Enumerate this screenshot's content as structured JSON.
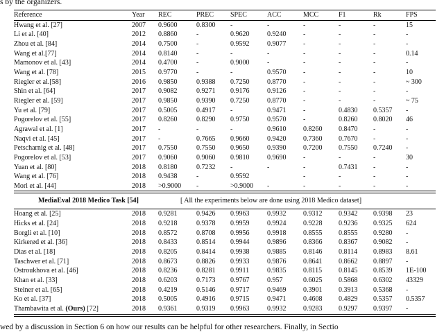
{
  "page": {
    "caption_top": "s by the organizers.",
    "caption_bottom": "wed by a discussion in Section 6 on how our results can be helpful for other researchers. Finally, in Sectio"
  },
  "table": {
    "columns": [
      "Reference",
      "Year",
      "REC",
      "PREC",
      "SPEC",
      "ACC",
      "MCC",
      "F1",
      "Rk",
      "FPS"
    ],
    "section1_rows": [
      {
        "cells": [
          "Hwang et al. [27]",
          "2007",
          "0.9600",
          "0.8300",
          "-",
          "-",
          "-",
          "-",
          "-",
          "15"
        ],
        "bold_cells": []
      },
      {
        "cells": [
          "Li et al. [40]",
          "2012",
          "0.8860",
          "-",
          "0.9620",
          "0.9240",
          "-",
          "-",
          "-",
          "-"
        ],
        "bold_cells": []
      },
      {
        "cells": [
          "Zhou et al. [84]",
          "2014",
          "0.7500",
          "-",
          "0.9592",
          "0.9077",
          "-",
          "-",
          "-",
          "-"
        ],
        "bold_cells": []
      },
      {
        "cells": [
          "Wang et al.[77]",
          "2014",
          "0.8140",
          "-",
          "-",
          "-",
          "-",
          "-",
          "-",
          "0.14"
        ],
        "bold_cells": []
      },
      {
        "cells": [
          "Mamonov et al. [43]",
          "2014",
          "0.4700",
          "-",
          "0.9000",
          "-",
          "-",
          "-",
          "-",
          "-"
        ],
        "bold_cells": []
      },
      {
        "cells": [
          "Wang et al. [78]",
          "2015",
          "0.9770",
          "-",
          "-",
          "0.9570",
          "-",
          "-",
          "-",
          "10"
        ],
        "bold_cells": []
      },
      {
        "cells": [
          "Riegler et al.[58]",
          "2016",
          "0.9850",
          "0.9388",
          "0.7250",
          "0.8770",
          "-",
          "-",
          "-",
          "~ 300"
        ],
        "bold_cells": []
      },
      {
        "cells": [
          "Shin et al. [64]",
          "2017",
          "0.9082",
          "0.9271",
          "0.9176",
          "0.9126",
          "-",
          "-",
          "-",
          "-"
        ],
        "bold_cells": []
      },
      {
        "cells": [
          "Riegler et al. [59]",
          "2017",
          "0.9850",
          "0.9390",
          "0.7250",
          "0.8770",
          "-",
          "-",
          "-",
          "~ 75"
        ],
        "bold_cells": []
      },
      {
        "cells": [
          "Yu et al. [79]",
          "2017",
          "0.5005",
          "0.4917",
          "-",
          "0.9471",
          "-",
          "0.4830",
          "0.5357",
          "-"
        ],
        "bold_cells": []
      },
      {
        "cells": [
          "Pogorelov et al. [55]",
          "2017",
          "0.8260",
          "0.8290",
          "0.9750",
          "0.9570",
          "-",
          "0.8260",
          "0.8020",
          "46"
        ],
        "bold_cells": []
      },
      {
        "cells": [
          "Agrawal et al. [1]",
          "2017",
          "-",
          "-",
          "-",
          "0.9610",
          "0.8260",
          "0.8470",
          "-",
          "-"
        ],
        "bold_cells": []
      },
      {
        "cells": [
          "Naqvi et al. [45]",
          "2017",
          "-",
          "0.7665",
          "0.9660",
          "0.9420",
          "0.7360",
          "0.7670",
          "-",
          "-"
        ],
        "bold_cells": []
      },
      {
        "cells": [
          "Petscharnig et al. [48]",
          "2017",
          "0.7550",
          "0.7550",
          "0.9650",
          "0.9390",
          "0.7200",
          "0.7550",
          "0.7240",
          "-"
        ],
        "bold_cells": []
      },
      {
        "cells": [
          "Pogorelov et al. [53]",
          "2017",
          "0.9060",
          "0.9060",
          "0.9810",
          "0.9690",
          "-",
          "-",
          "-",
          "30"
        ],
        "bold_cells": []
      },
      {
        "cells": [
          "Yuan et al. [80]",
          "2018",
          "0.8180",
          "0.7232",
          "-",
          "-",
          "-",
          "0.7431",
          "-",
          "-"
        ],
        "bold_cells": []
      },
      {
        "cells": [
          "Wang et al. [76]",
          "2018",
          "0.9438",
          "-",
          "0.9592",
          "",
          "-",
          "-",
          "-",
          "-"
        ],
        "bold_cells": []
      },
      {
        "cells": [
          "Mori et al. [44]",
          "2018",
          ">0.9000",
          "-",
          ">0.9000",
          "-",
          "-",
          "-",
          "-",
          "-"
        ],
        "bold_cells": []
      }
    ],
    "section_header": {
      "title": "MediaEval 2018 Medico Task [54]",
      "note": "[ All the experiments below are done using 2018 Medico dataset]"
    },
    "section2_rows": [
      {
        "cells": [
          "Hoang et al. [25]",
          "2018",
          "0.9281",
          "0.9426",
          "0.9963",
          "0.9932",
          "0.9312",
          "0.9342",
          "0.9398",
          "23"
        ],
        "bold_cells": [
          3,
          4,
          5,
          6,
          7,
          8
        ]
      },
      {
        "cells": [
          "Hicks et al. [24]",
          "2018",
          "0.9218",
          "0.9378",
          "0.9959",
          "0.9924",
          "0.9228",
          "0.9236",
          "0.9325",
          "624"
        ],
        "bold_cells": []
      },
      {
        "cells": [
          "Borgli et al. [10]",
          "2018",
          "0.8572",
          "0.8708",
          "0.9956",
          "0.9918",
          "0.8555",
          "0.8555",
          "0.9280",
          "-"
        ],
        "bold_cells": []
      },
      {
        "cells": [
          "Kirkerød et al. [36]",
          "2018",
          "0.8433",
          "0.8514",
          "0.9944",
          "0.9896",
          "0.8366",
          "0.8367",
          "0.9082",
          "-"
        ],
        "bold_cells": []
      },
      {
        "cells": [
          "Dias et al. [18]",
          "2018",
          "0.8205",
          "0.8414",
          "0.9938",
          "0.9885",
          "0.8146",
          "0.8114",
          "0.8983",
          "8.61"
        ],
        "bold_cells": []
      },
      {
        "cells": [
          "Taschwer et al. [71]",
          "2018",
          "0.8673",
          "0.8826",
          "0.9933",
          "0.9876",
          "0.8641",
          "0.8662",
          "0.8897",
          "-"
        ],
        "bold_cells": []
      },
      {
        "cells": [
          "Ostroukhova et al. [46]",
          "2018",
          "0.8236",
          "0.8281",
          "0.9911",
          "0.9835",
          "0.8115",
          "0.8145",
          "0.8539",
          "1E-100"
        ],
        "bold_cells": []
      },
      {
        "cells": [
          "Khan et al. [33]",
          "2018",
          "0.6203",
          "0.7173",
          "0.9767",
          "0.957",
          "0.6025",
          "0.5868",
          "0.6302",
          "43329"
        ],
        "bold_cells": []
      },
      {
        "cells": [
          "Steiner et al. [65]",
          "2018",
          "0.4219",
          "0.5146",
          "0.9717",
          "0.9469",
          "0.3901",
          "0.3913",
          "0.5368",
          "-"
        ],
        "bold_cells": []
      },
      {
        "cells": [
          "Ko et al. [37]",
          "2018",
          "0.5005",
          "0.4916",
          "0.9715",
          "0.9471",
          "0.4608",
          "0.4829",
          "0.5357",
          "0.5357"
        ],
        "bold_cells": []
      },
      {
        "cells": [
          "Thambawita et al. (Ours) [72]",
          "2018",
          "0.9361",
          "0.9319",
          "0.9963",
          "0.9932",
          "0.9283",
          "0.9297",
          "0.9397",
          "-"
        ],
        "bold_cells": [
          2,
          4,
          5
        ],
        "ref_parts": [
          "Thambawita et al. ",
          "(Ours)",
          " [72]"
        ]
      }
    ]
  }
}
